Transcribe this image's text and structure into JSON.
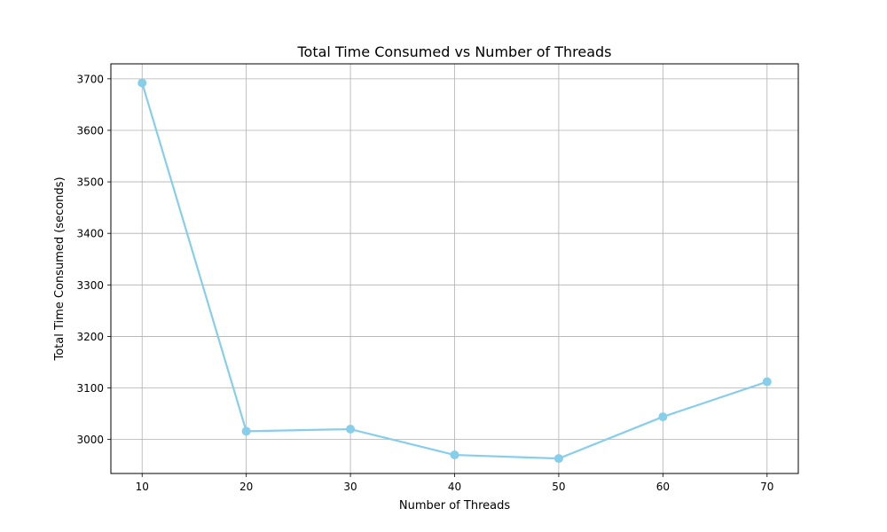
{
  "chart_data": {
    "type": "line",
    "title": "Total Time Consumed vs Number of Threads",
    "xlabel": "Number of Threads",
    "ylabel": "Total Time Consumed (seconds)",
    "x": [
      10,
      20,
      30,
      40,
      50,
      60,
      70
    ],
    "series": [
      {
        "values": [
          3692,
          3016,
          3020,
          2970,
          2963,
          3044,
          3112
        ]
      }
    ],
    "xlim": [
      7,
      73
    ],
    "ylim": [
      2934,
      3729
    ],
    "xticks": [
      10,
      20,
      30,
      40,
      50,
      60,
      70
    ],
    "yticks": [
      3000,
      3100,
      3200,
      3300,
      3400,
      3500,
      3600,
      3700
    ],
    "grid": true,
    "marker": "circle",
    "color": "#87ceeb"
  }
}
